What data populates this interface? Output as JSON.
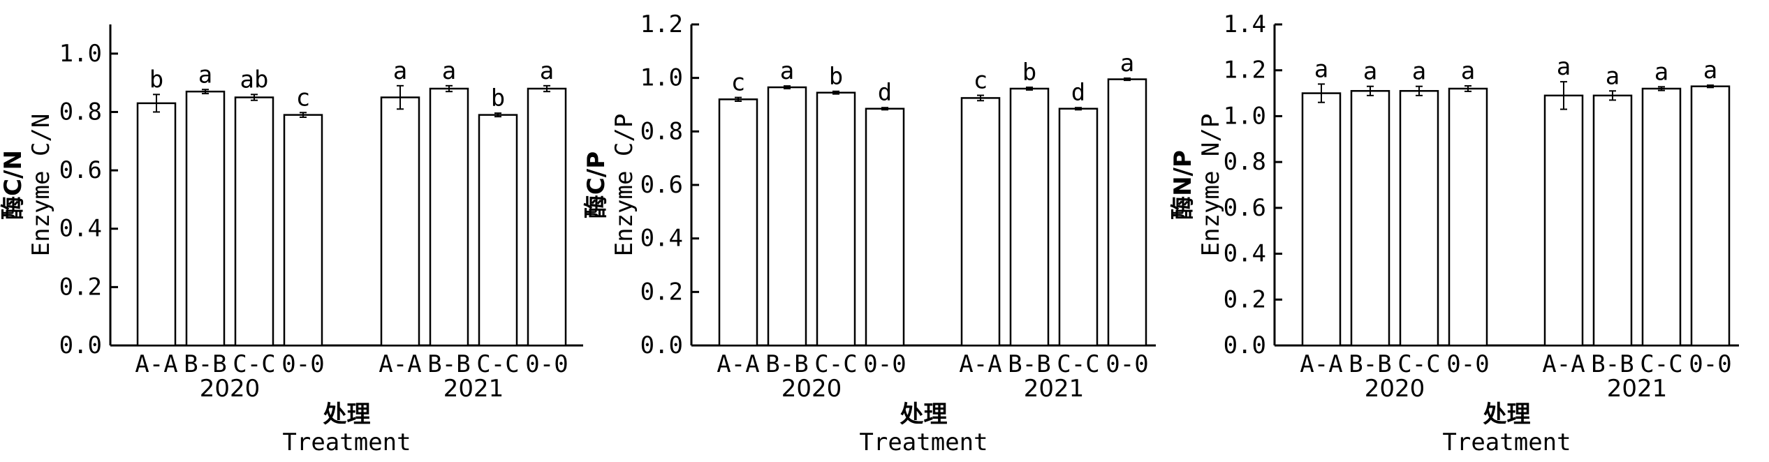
{
  "chart_data": [
    {
      "type": "bar",
      "ylabel_cn": "酶C/N",
      "ylabel_en": "Enzyme C/N",
      "xlabel_cn": "处理",
      "xlabel_en": "Treatment",
      "ylim": [
        0,
        1.1
      ],
      "yticks": [
        "0.0",
        "0.2",
        "0.4",
        "0.6",
        "0.8",
        "1.0"
      ],
      "groups": [
        {
          "year": "2020",
          "categories": [
            "A-A",
            "B-B",
            "C-C",
            "0-0"
          ],
          "values": [
            0.83,
            0.87,
            0.85,
            0.79
          ],
          "errors": [
            0.03,
            0.007,
            0.01,
            0.008
          ],
          "letters": [
            "b",
            "a",
            "ab",
            "c"
          ]
        },
        {
          "year": "2021",
          "categories": [
            "A-A",
            "B-B",
            "C-C",
            "0-0"
          ],
          "values": [
            0.85,
            0.88,
            0.79,
            0.88
          ],
          "errors": [
            0.04,
            0.01,
            0.006,
            0.01
          ],
          "letters": [
            "a",
            "a",
            "b",
            "a"
          ]
        }
      ]
    },
    {
      "type": "bar",
      "ylabel_cn": "酶C/P",
      "ylabel_en": "Enzyme C/P",
      "xlabel_cn": "处理",
      "xlabel_en": "Treatment",
      "ylim": [
        0,
        1.2
      ],
      "yticks": [
        "0.0",
        "0.2",
        "0.4",
        "0.6",
        "0.8",
        "1.0",
        "1.2"
      ],
      "groups": [
        {
          "year": "2020",
          "categories": [
            "A-A",
            "B-B",
            "C-C",
            "0-0"
          ],
          "values": [
            0.92,
            0.965,
            0.945,
            0.885
          ],
          "errors": [
            0.007,
            0.005,
            0.005,
            0.004
          ],
          "letters": [
            "c",
            "a",
            "b",
            "d"
          ]
        },
        {
          "year": "2021",
          "categories": [
            "A-A",
            "B-B",
            "C-C",
            "0-0"
          ],
          "values": [
            0.925,
            0.96,
            0.885,
            0.995
          ],
          "errors": [
            0.01,
            0.005,
            0.004,
            0.004
          ],
          "letters": [
            "c",
            "b",
            "d",
            "a"
          ]
        }
      ]
    },
    {
      "type": "bar",
      "ylabel_cn": "酶N/P",
      "ylabel_en": "Enzyme N/P",
      "xlabel_cn": "处理",
      "xlabel_en": "Treatment",
      "ylim": [
        0,
        1.4
      ],
      "yticks": [
        "0.0",
        "0.2",
        "0.4",
        "0.6",
        "0.8",
        "1.0",
        "1.2",
        "1.4"
      ],
      "groups": [
        {
          "year": "2020",
          "categories": [
            "A-A",
            "B-B",
            "C-C",
            "0-0"
          ],
          "values": [
            1.1,
            1.11,
            1.11,
            1.12
          ],
          "errors": [
            0.04,
            0.02,
            0.02,
            0.012
          ],
          "letters": [
            "a",
            "a",
            "a",
            "a"
          ]
        },
        {
          "year": "2021",
          "categories": [
            "A-A",
            "B-B",
            "C-C",
            "0-0"
          ],
          "values": [
            1.09,
            1.09,
            1.12,
            1.13
          ],
          "errors": [
            0.06,
            0.02,
            0.008,
            0.005
          ],
          "letters": [
            "a",
            "a",
            "a",
            "a"
          ]
        }
      ]
    }
  ]
}
